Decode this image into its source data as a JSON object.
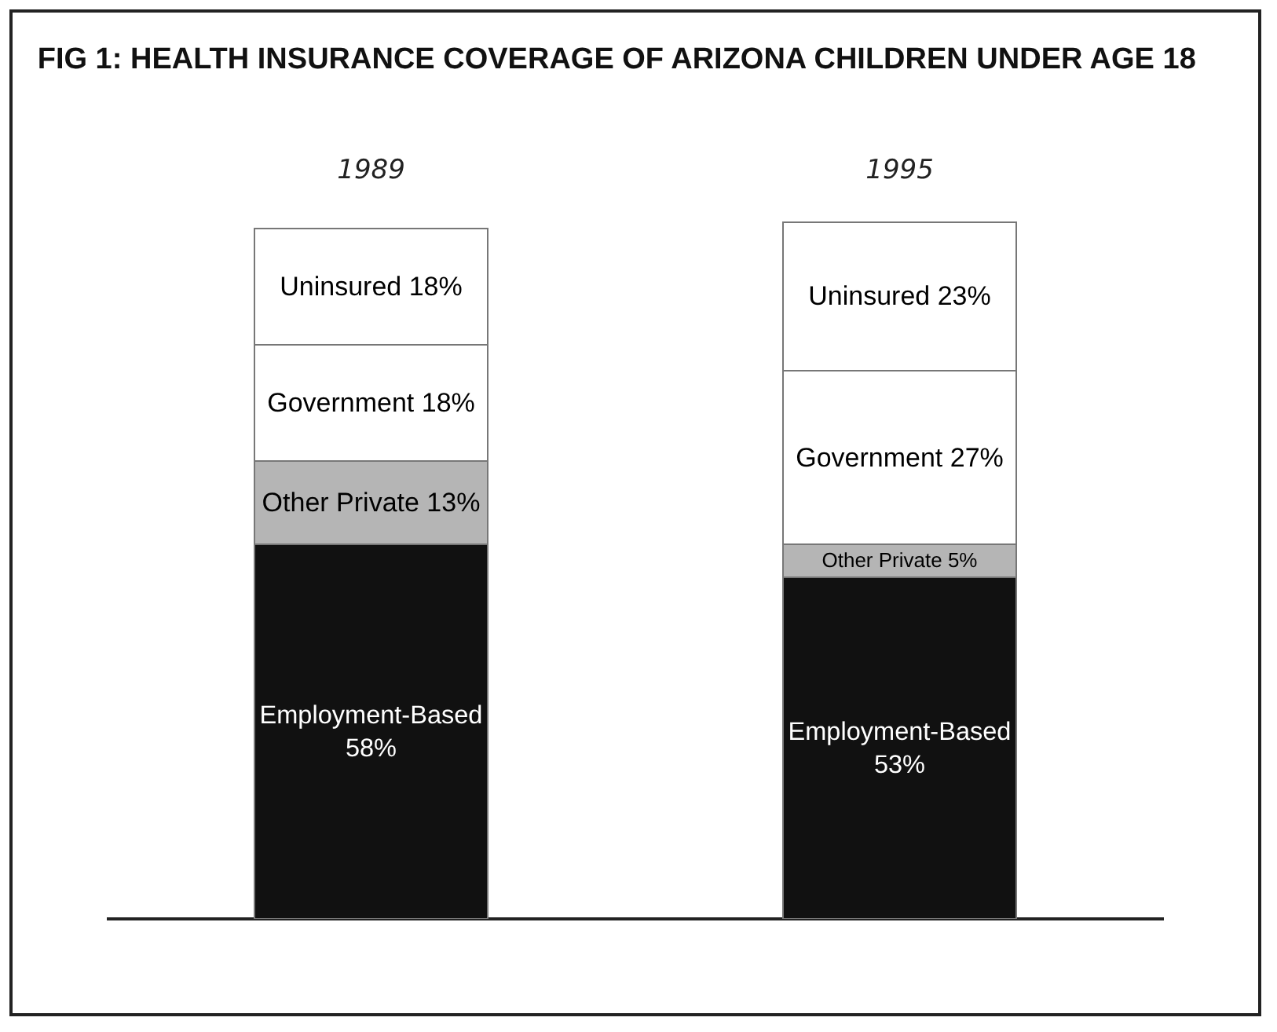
{
  "chart_data": {
    "type": "bar",
    "title": "FIG 1: HEALTH INSURANCE COVERAGE OF ARIZONA CHILDREN UNDER AGE 18",
    "categories": [
      "1989",
      "1995"
    ],
    "stacked": true,
    "data_labels": true,
    "legend": false,
    "series": [
      {
        "name": "Employment-Based",
        "color": "#111111",
        "values": [
          58,
          53
        ],
        "value_labels": [
          "58%",
          "53%"
        ]
      },
      {
        "name": "Other Private",
        "color": "#b5b5b5",
        "values": [
          13,
          5
        ],
        "value_labels": [
          "13%",
          "5%"
        ]
      },
      {
        "name": "Government",
        "color": "#ffffff",
        "values": [
          18,
          27
        ],
        "value_labels": [
          "18%",
          "27%"
        ]
      },
      {
        "name": "Uninsured",
        "color": "#ffffff",
        "values": [
          18,
          23
        ],
        "value_labels": [
          "18%",
          "23%"
        ]
      }
    ]
  }
}
